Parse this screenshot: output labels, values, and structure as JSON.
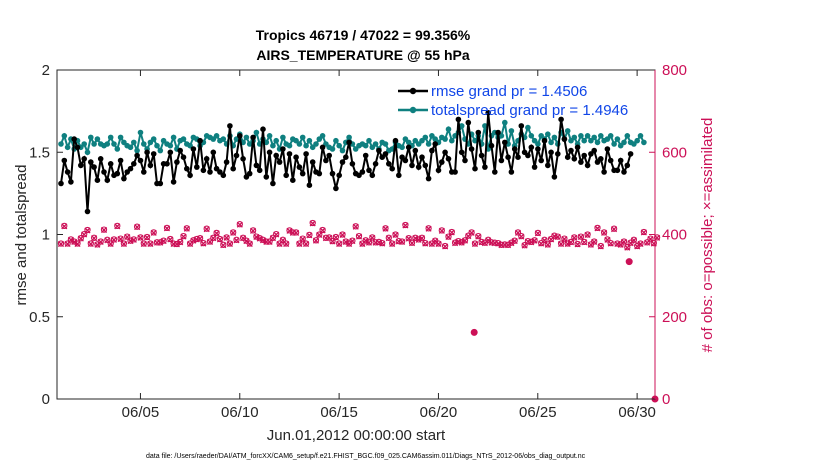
{
  "chart_data": {
    "type": "line",
    "title_line1": "Tropics 46719 / 47022 = 99.356%",
    "title_line2": "AIRS_TEMPERATURE @ 55 hPa",
    "xlabel": "Jun.01,2012 00:00:00 start",
    "ylabel_left": "rmse and totalspread",
    "ylabel_right": "# of obs: o=possible; ×=assimilated",
    "xlim": [
      0.8,
      30.9
    ],
    "ylim_left": [
      0,
      2
    ],
    "ylim_right": [
      0,
      800
    ],
    "x_tick_values": [
      5,
      10,
      15,
      20,
      25,
      30
    ],
    "x_tick_labels": [
      "06/05",
      "06/10",
      "06/15",
      "06/20",
      "06/25",
      "06/30"
    ],
    "y_left_tick_values": [
      0,
      0.5,
      1,
      1.5,
      2
    ],
    "y_left_tick_labels": [
      "0",
      "0.5",
      "1",
      "1.5",
      "2"
    ],
    "y_right_tick_values": [
      0,
      200,
      400,
      600,
      800
    ],
    "y_right_tick_labels": [
      "0",
      "200",
      "400",
      "600",
      "800"
    ],
    "legend": [
      "rmse grand pr = 1.4506",
      "totalspread grand pr = 1.4946"
    ],
    "footnote": "data file: /Users/raeder/DAI/ATM_forcXX/CAM6_setup/f.e21.FHIST_BGC.f09_025.CAM6assim.011/Diags_NTrS_2012-06/obs_diag_output.nc",
    "colors": {
      "rmse": "#000000",
      "spread": "#0f8080",
      "obs": "#cc1057",
      "legend_text": "#1046e8"
    },
    "series": [
      {
        "name": "rmse",
        "axis": "left",
        "values": [
          1.31,
          1.45,
          1.38,
          1.32,
          1.58,
          1.53,
          1.42,
          1.46,
          1.14,
          1.44,
          1.41,
          1.33,
          1.46,
          1.38,
          1.33,
          1.43,
          1.36,
          1.37,
          1.45,
          1.34,
          1.38,
          1.4,
          1.43,
          1.48,
          1.45,
          1.38,
          1.5,
          1.42,
          1.49,
          1.31,
          1.31,
          1.43,
          1.43,
          1.5,
          1.32,
          1.44,
          1.51,
          1.47,
          1.4,
          1.36,
          1.52,
          1.41,
          1.57,
          1.39,
          1.46,
          1.38,
          1.5,
          1.4,
          1.38,
          1.36,
          1.44,
          1.66,
          1.4,
          1.48,
          1.6,
          1.46,
          1.35,
          1.37,
          1.59,
          1.42,
          1.39,
          1.64,
          1.35,
          1.5,
          1.31,
          1.48,
          1.44,
          1.52,
          1.36,
          1.49,
          1.33,
          1.47,
          1.41,
          1.37,
          1.49,
          1.3,
          1.44,
          1.38,
          1.37,
          1.53,
          1.45,
          1.48,
          1.37,
          1.28,
          1.36,
          1.44,
          1.47,
          1.56,
          1.43,
          1.37,
          1.36,
          1.38,
          1.48,
          1.39,
          1.36,
          1.43,
          1.51,
          1.47,
          1.49,
          1.43,
          1.4,
          1.57,
          1.36,
          1.47,
          1.45,
          1.53,
          1.42,
          1.51,
          1.41,
          1.47,
          1.42,
          1.34,
          1.51,
          1.55,
          1.39,
          1.44,
          1.5,
          1.46,
          1.38,
          1.38,
          1.7,
          1.5,
          1.45,
          1.68,
          1.52,
          1.4,
          1.62,
          1.48,
          1.41,
          1.74,
          1.54,
          1.38,
          1.62,
          1.45,
          1.56,
          1.47,
          1.38,
          1.52,
          1.47,
          1.66,
          1.5,
          1.48,
          1.53,
          1.41,
          1.52,
          1.45,
          1.57,
          1.42,
          1.5,
          1.35,
          1.49,
          1.7,
          1.58,
          1.47,
          1.51,
          1.46,
          1.53,
          1.44,
          1.48,
          1.42,
          1.49,
          1.51,
          1.44,
          1.46,
          1.38,
          1.52,
          1.45,
          1.39,
          1.39,
          1.45,
          1.38,
          1.42,
          1.49
        ]
      },
      {
        "name": "totalspread",
        "axis": "left",
        "values": [
          1.55,
          1.6,
          1.53,
          1.58,
          1.52,
          1.57,
          1.53,
          1.55,
          1.5,
          1.59,
          1.55,
          1.58,
          1.55,
          1.54,
          1.55,
          1.59,
          1.55,
          1.52,
          1.59,
          1.56,
          1.54,
          1.53,
          1.56,
          1.51,
          1.62,
          1.55,
          1.52,
          1.56,
          1.58,
          1.54,
          1.51,
          1.57,
          1.55,
          1.54,
          1.59,
          1.52,
          1.57,
          1.58,
          1.55,
          1.54,
          1.59,
          1.58,
          1.54,
          1.56,
          1.6,
          1.59,
          1.58,
          1.6,
          1.57,
          1.58,
          1.55,
          1.6,
          1.54,
          1.58,
          1.61,
          1.56,
          1.59,
          1.55,
          1.57,
          1.62,
          1.55,
          1.58,
          1.56,
          1.6,
          1.54,
          1.57,
          1.52,
          1.59,
          1.55,
          1.54,
          1.58,
          1.57,
          1.55,
          1.59,
          1.54,
          1.57,
          1.53,
          1.55,
          1.58,
          1.6,
          1.55,
          1.53,
          1.52,
          1.57,
          1.54,
          1.51,
          1.56,
          1.59,
          1.55,
          1.52,
          1.54,
          1.55,
          1.54,
          1.57,
          1.53,
          1.55,
          1.52,
          1.56,
          1.55,
          1.51,
          1.52,
          1.56,
          1.54,
          1.53,
          1.58,
          1.56,
          1.54,
          1.57,
          1.55,
          1.57,
          1.59,
          1.55,
          1.6,
          1.58,
          1.56,
          1.59,
          1.58,
          1.64,
          1.57,
          1.6,
          1.62,
          1.66,
          1.58,
          1.55,
          1.61,
          1.57,
          1.6,
          1.55,
          1.66,
          1.52,
          1.6,
          1.62,
          1.59,
          1.6,
          1.68,
          1.55,
          1.63,
          1.54,
          1.57,
          1.61,
          1.59,
          1.65,
          1.6,
          1.57,
          1.55,
          1.6,
          1.58,
          1.61,
          1.56,
          1.59,
          1.55,
          1.62,
          1.58,
          1.63,
          1.57,
          1.59,
          1.55,
          1.6,
          1.57,
          1.6,
          1.57,
          1.59,
          1.56,
          1.6,
          1.57,
          1.58,
          1.6,
          1.55,
          1.58,
          1.54,
          1.56,
          1.6,
          1.56,
          1.55,
          1.57,
          1.6,
          1.56
        ]
      },
      {
        "name": "obs_possible",
        "axis": "right",
        "values": [
          378,
          421,
          378,
          388,
          383,
          378,
          391,
          401,
          411,
          378,
          392,
          376,
          383,
          412,
          387,
          378,
          388,
          421,
          390,
          378,
          395,
          385,
          388,
          419,
          393,
          378,
          394,
          378,
          405,
          381,
          381,
          385,
          416,
          389,
          378,
          377,
          382,
          396,
          415,
          378,
          386,
          389,
          391,
          379,
          414,
          383,
          392,
          404,
          389,
          375,
          393,
          378,
          405,
          387,
          425,
          392,
          385,
          378,
          410,
          395,
          391,
          387,
          383,
          383,
          392,
          401,
          378,
          387,
          378,
          410,
          405,
          405,
          378,
          390,
          378,
          399,
          428,
          386,
          400,
          411,
          392,
          393,
          384,
          394,
          378,
          400,
          383,
          378,
          385,
          420,
          396,
          378,
          386,
          381,
          393,
          381,
          382,
          379,
          415,
          392,
          378,
          400,
          384,
          383,
          423,
          391,
          380,
          392,
          388,
          392,
          379,
          415,
          378,
          385,
          378,
          410,
          372,
          395,
          406,
          380,
          384,
          381,
          386,
          397,
          405,
          378,
          396,
          382,
          380,
          387,
          381,
          380,
          379,
          375,
          376,
          375,
          380,
          385,
          405,
          396,
          374,
          384,
          382,
          386,
          404,
          379,
          387,
          376,
          389,
          397,
          395,
          378,
          390,
          378,
          382,
          393,
          377,
          395,
          382,
          400,
          376,
          383,
          416,
          372,
          405,
          388,
          379,
          414,
          378,
          376,
          383,
          369,
          380,
          387,
          372,
          378,
          406,
          381,
          390,
          379,
          393
        ]
      },
      {
        "name": "obs_assimilated",
        "axis": "right",
        "values": [
          377,
          420,
          377,
          387,
          382,
          377,
          390,
          400,
          410,
          377,
          391,
          375,
          382,
          411,
          386,
          377,
          387,
          420,
          389,
          377,
          394,
          384,
          387,
          418,
          392,
          377,
          393,
          377,
          404,
          380,
          380,
          384,
          415,
          388,
          377,
          376,
          381,
          395,
          414,
          377,
          385,
          388,
          390,
          378,
          413,
          382,
          391,
          403,
          388,
          374,
          392,
          377,
          404,
          386,
          424,
          391,
          384,
          377,
          409,
          394,
          390,
          386,
          382,
          382,
          391,
          400,
          377,
          386,
          377,
          409,
          404,
          404,
          377,
          389,
          377,
          398,
          427,
          385,
          399,
          410,
          391,
          392,
          383,
          393,
          377,
          399,
          382,
          377,
          384,
          419,
          395,
          377,
          385,
          380,
          392,
          380,
          381,
          378,
          414,
          391,
          377,
          399,
          383,
          382,
          422,
          390,
          379,
          391,
          387,
          391,
          378,
          414,
          377,
          384,
          377,
          409,
          371,
          394,
          405,
          379,
          383,
          380,
          385,
          396,
          404,
          377,
          395,
          381,
          379,
          386,
          380,
          379,
          378,
          374,
          375,
          374,
          379,
          384,
          404,
          395,
          373,
          383,
          381,
          385,
          403,
          378,
          386,
          375,
          388,
          396,
          394,
          377,
          389,
          377,
          381,
          392,
          376,
          394,
          381,
          399,
          375,
          382,
          415,
          371,
          404,
          387,
          378,
          413,
          377,
          375,
          382,
          368,
          379,
          386,
          371,
          377,
          405,
          380,
          389,
          378,
          392
        ]
      },
      {
        "name": "obs_outlier",
        "axis": "right",
        "points": [
          [
            21.8,
            162
          ],
          [
            29.6,
            334
          ],
          [
            30.9,
            0
          ]
        ]
      }
    ]
  }
}
